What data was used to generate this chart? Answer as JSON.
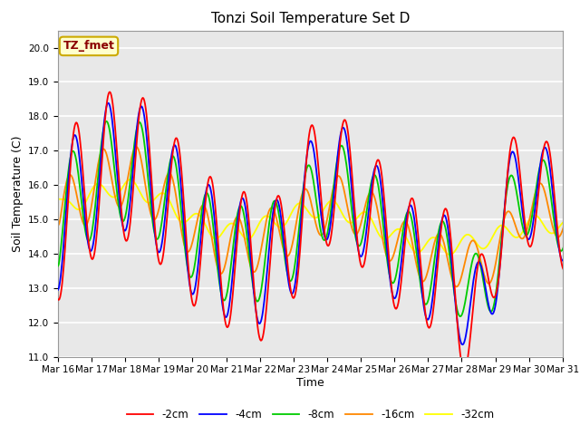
{
  "title": "Tonzi Soil Temperature Set D",
  "xlabel": "Time",
  "ylabel": "Soil Temperature (C)",
  "ylim": [
    11.0,
    20.5
  ],
  "yticks": [
    11.0,
    12.0,
    13.0,
    14.0,
    15.0,
    16.0,
    17.0,
    18.0,
    19.0,
    20.0
  ],
  "xtick_labels": [
    "Mar 16",
    "Mar 17",
    "Mar 18",
    "Mar 19",
    "Mar 20",
    "Mar 21",
    "Mar 22",
    "Mar 23",
    "Mar 24",
    "Mar 25",
    "Mar 26",
    "Mar 27",
    "Mar 28",
    "Mar 29",
    "Mar 30",
    "Mar 31"
  ],
  "legend_labels": [
    "-2cm",
    "-4cm",
    "-8cm",
    "-16cm",
    "-32cm"
  ],
  "line_colors": [
    "#ff0000",
    "#0000ff",
    "#00cc00",
    "#ff8800",
    "#ffff00"
  ],
  "annotation_text": "TZ_fmet",
  "annotation_bg": "#ffffcc",
  "annotation_border": "#ccaa00",
  "plot_bg": "#e8e8e8",
  "grid_color": "#ffffff",
  "title_fontsize": 11,
  "axis_fontsize": 9,
  "tick_fontsize": 7.5
}
